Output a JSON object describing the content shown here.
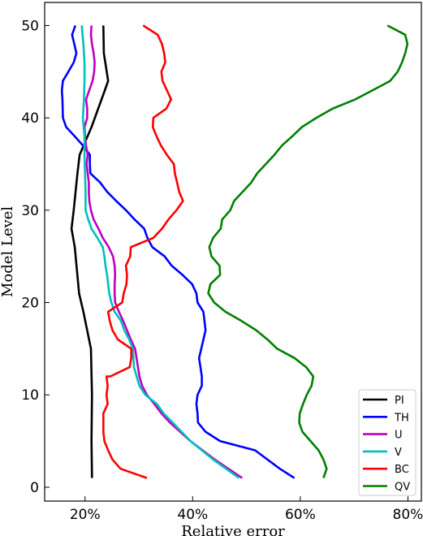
{
  "chart_data": {
    "type": "line",
    "title": "",
    "xlabel": "Relative error",
    "ylabel": "Model Level",
    "xlim": [
      12.5,
      82.5
    ],
    "ylim": [
      -1.5,
      52.5
    ],
    "x_ticks": [
      {
        "value": 20,
        "label": "20%"
      },
      {
        "value": 40,
        "label": "40%"
      },
      {
        "value": 60,
        "label": "60%"
      },
      {
        "value": 80,
        "label": "80%"
      }
    ],
    "y_ticks": [
      {
        "value": 0,
        "label": "0"
      },
      {
        "value": 10,
        "label": "10"
      },
      {
        "value": 20,
        "label": "20"
      },
      {
        "value": 30,
        "label": "30"
      },
      {
        "value": 40,
        "label": "40"
      },
      {
        "value": 50,
        "label": "50"
      }
    ],
    "grid": false,
    "legend_position": "lower-right",
    "series": [
      {
        "name": "PI",
        "color": "#000000",
        "points": [
          [
            21.3,
            1
          ],
          [
            21.2,
            5
          ],
          [
            21.3,
            10
          ],
          [
            21.1,
            15
          ],
          [
            19.7,
            19
          ],
          [
            18.9,
            21
          ],
          [
            18.1,
            26
          ],
          [
            17.5,
            28
          ],
          [
            17.9,
            30
          ],
          [
            18.6,
            34
          ],
          [
            19.0,
            36
          ],
          [
            21.2,
            39
          ],
          [
            23.7,
            43
          ],
          [
            24.3,
            44
          ],
          [
            23.5,
            47
          ],
          [
            23.4,
            50
          ]
        ]
      },
      {
        "name": "TH",
        "color": "#0000ff",
        "points": [
          [
            58.9,
            1
          ],
          [
            56.2,
            2
          ],
          [
            51.6,
            4
          ],
          [
            45.1,
            5
          ],
          [
            42.4,
            6
          ],
          [
            41.0,
            7
          ],
          [
            40.9,
            8
          ],
          [
            40.7,
            9
          ],
          [
            40.9,
            10
          ],
          [
            41.7,
            11
          ],
          [
            41.7,
            12
          ],
          [
            41.2,
            14
          ],
          [
            41.6,
            15
          ],
          [
            42.4,
            17
          ],
          [
            42.0,
            19
          ],
          [
            40.9,
            20
          ],
          [
            40.7,
            21
          ],
          [
            39.9,
            22
          ],
          [
            38.1,
            23
          ],
          [
            36.1,
            24
          ],
          [
            34.8,
            25
          ],
          [
            32.5,
            26
          ],
          [
            31.6,
            27
          ],
          [
            31.0,
            28
          ],
          [
            29.2,
            29
          ],
          [
            27.6,
            30
          ],
          [
            25.8,
            31
          ],
          [
            24.1,
            32
          ],
          [
            22.8,
            33
          ],
          [
            21.0,
            34
          ],
          [
            20.9,
            35
          ],
          [
            20.9,
            36
          ],
          [
            19.6,
            37
          ],
          [
            18.1,
            38
          ],
          [
            16.5,
            39
          ],
          [
            15.9,
            40
          ],
          [
            15.8,
            42
          ],
          [
            15.7,
            43
          ],
          [
            15.9,
            44
          ],
          [
            16.9,
            45
          ],
          [
            17.9,
            46
          ],
          [
            18.4,
            47
          ],
          [
            18.0,
            48
          ],
          [
            17.6,
            49
          ],
          [
            18.2,
            50
          ]
        ]
      },
      {
        "name": "U",
        "color": "#bf00bf",
        "points": [
          [
            49.2,
            1
          ],
          [
            44.1,
            3
          ],
          [
            39.6,
            5
          ],
          [
            35.8,
            7
          ],
          [
            34.2,
            8
          ],
          [
            32.9,
            9
          ],
          [
            31.5,
            10
          ],
          [
            30.6,
            11
          ],
          [
            30.1,
            12
          ],
          [
            29.3,
            15
          ],
          [
            28.5,
            16
          ],
          [
            27.8,
            17
          ],
          [
            27.1,
            18
          ],
          [
            26.3,
            19
          ],
          [
            25.6,
            20
          ],
          [
            25.5,
            21
          ],
          [
            25.5,
            22
          ],
          [
            25.6,
            23
          ],
          [
            25.5,
            24
          ],
          [
            25.2,
            25
          ],
          [
            24.4,
            26
          ],
          [
            23.3,
            27
          ],
          [
            22.5,
            28
          ],
          [
            21.6,
            29
          ],
          [
            21.1,
            30
          ],
          [
            20.8,
            31
          ],
          [
            20.7,
            32
          ],
          [
            20.7,
            33
          ],
          [
            20.5,
            34
          ],
          [
            20.3,
            35
          ],
          [
            20.5,
            36
          ],
          [
            20.2,
            37
          ],
          [
            20.0,
            38
          ],
          [
            19.9,
            39
          ],
          [
            20.4,
            40
          ],
          [
            20.4,
            41
          ],
          [
            20.2,
            42
          ],
          [
            20.8,
            43
          ],
          [
            21.4,
            44
          ],
          [
            21.7,
            45
          ],
          [
            21.8,
            46
          ],
          [
            21.6,
            47
          ],
          [
            21.3,
            48
          ],
          [
            21.1,
            49
          ],
          [
            21.2,
            50
          ]
        ]
      },
      {
        "name": "V",
        "color": "#00bfbf",
        "points": [
          [
            48.6,
            1
          ],
          [
            43.8,
            3
          ],
          [
            39.6,
            5
          ],
          [
            36.3,
            7
          ],
          [
            34.6,
            8
          ],
          [
            33.4,
            9
          ],
          [
            31.2,
            10
          ],
          [
            30.1,
            11
          ],
          [
            29.6,
            12
          ],
          [
            29.1,
            13
          ],
          [
            28.9,
            15
          ],
          [
            28.2,
            16
          ],
          [
            27.3,
            17
          ],
          [
            26.7,
            18
          ],
          [
            25.5,
            19
          ],
          [
            24.9,
            20
          ],
          [
            24.5,
            21
          ],
          [
            24.3,
            22
          ],
          [
            24.1,
            23
          ],
          [
            23.8,
            24
          ],
          [
            23.6,
            25
          ],
          [
            23.3,
            26
          ],
          [
            22.3,
            27
          ],
          [
            21.2,
            28
          ],
          [
            20.6,
            29
          ],
          [
            20.1,
            30
          ],
          [
            20.1,
            32
          ],
          [
            20.0,
            34
          ],
          [
            19.9,
            36
          ],
          [
            19.9,
            38
          ],
          [
            19.6,
            40
          ],
          [
            19.8,
            42
          ],
          [
            19.9,
            44
          ],
          [
            19.9,
            46
          ],
          [
            19.7,
            48
          ],
          [
            19.4,
            50
          ]
        ]
      },
      {
        "name": "BC",
        "color": "#ff0000",
        "points": [
          [
            31.5,
            1
          ],
          [
            26.6,
            2
          ],
          [
            25.1,
            3
          ],
          [
            24.3,
            4
          ],
          [
            23.6,
            5
          ],
          [
            23.4,
            6
          ],
          [
            23.4,
            7
          ],
          [
            23.4,
            8
          ],
          [
            24.2,
            9
          ],
          [
            24.0,
            10
          ],
          [
            24.2,
            11
          ],
          [
            24.0,
            12
          ],
          [
            24.7,
            12
          ],
          [
            28.3,
            13
          ],
          [
            28.6,
            14
          ],
          [
            28.6,
            15
          ],
          [
            26.1,
            16
          ],
          [
            25.1,
            17
          ],
          [
            24.6,
            18
          ],
          [
            24.3,
            19
          ],
          [
            26.9,
            20
          ],
          [
            27.2,
            21
          ],
          [
            27.7,
            22
          ],
          [
            27.8,
            23
          ],
          [
            27.6,
            24
          ],
          [
            28.4,
            25
          ],
          [
            28.5,
            26
          ],
          [
            32.7,
            27
          ],
          [
            34.3,
            28
          ],
          [
            35.5,
            29
          ],
          [
            37.0,
            30
          ],
          [
            38.2,
            31
          ],
          [
            37.5,
            32
          ],
          [
            37.1,
            33
          ],
          [
            36.7,
            34
          ],
          [
            36.5,
            35
          ],
          [
            35.2,
            36
          ],
          [
            34.1,
            37
          ],
          [
            33.3,
            38
          ],
          [
            32.6,
            39
          ],
          [
            32.7,
            40
          ],
          [
            35.1,
            41
          ],
          [
            36.0,
            42
          ],
          [
            35.2,
            43
          ],
          [
            34.4,
            44
          ],
          [
            34.2,
            45
          ],
          [
            34.9,
            46
          ],
          [
            34.7,
            47
          ],
          [
            34.3,
            48
          ],
          [
            33.5,
            49
          ],
          [
            30.8,
            50
          ]
        ]
      },
      {
        "name": "QV",
        "color": "#008000",
        "points": [
          [
            64.3,
            1
          ],
          [
            64.9,
            2
          ],
          [
            64.3,
            3
          ],
          [
            63.4,
            4
          ],
          [
            61.9,
            5
          ],
          [
            60.4,
            6
          ],
          [
            59.8,
            7
          ],
          [
            59.9,
            8
          ],
          [
            60.5,
            9
          ],
          [
            61.2,
            10
          ],
          [
            62.1,
            11
          ],
          [
            62.4,
            12
          ],
          [
            61.1,
            13
          ],
          [
            58.9,
            14
          ],
          [
            55.7,
            15
          ],
          [
            53.9,
            16
          ],
          [
            51.8,
            17
          ],
          [
            49.1,
            18
          ],
          [
            46.1,
            19
          ],
          [
            44.0,
            20
          ],
          [
            42.9,
            21
          ],
          [
            43.3,
            22
          ],
          [
            45.1,
            23
          ],
          [
            45.0,
            24
          ],
          [
            43.5,
            25
          ],
          [
            43.1,
            26
          ],
          [
            43.8,
            27
          ],
          [
            45.2,
            28
          ],
          [
            45.5,
            29
          ],
          [
            47.0,
            30
          ],
          [
            47.7,
            31
          ],
          [
            49.3,
            32
          ],
          [
            50.9,
            33
          ],
          [
            52.0,
            34
          ],
          [
            53.6,
            35
          ],
          [
            55.2,
            36
          ],
          [
            56.6,
            37
          ],
          [
            58.5,
            38
          ],
          [
            60.3,
            39
          ],
          [
            63.0,
            40
          ],
          [
            66.0,
            41
          ],
          [
            70.2,
            42
          ],
          [
            73.5,
            43
          ],
          [
            76.7,
            44
          ],
          [
            78.1,
            45
          ],
          [
            78.9,
            46
          ],
          [
            79.5,
            47
          ],
          [
            79.9,
            48
          ],
          [
            79.5,
            49
          ],
          [
            76.2,
            50
          ]
        ]
      }
    ]
  }
}
